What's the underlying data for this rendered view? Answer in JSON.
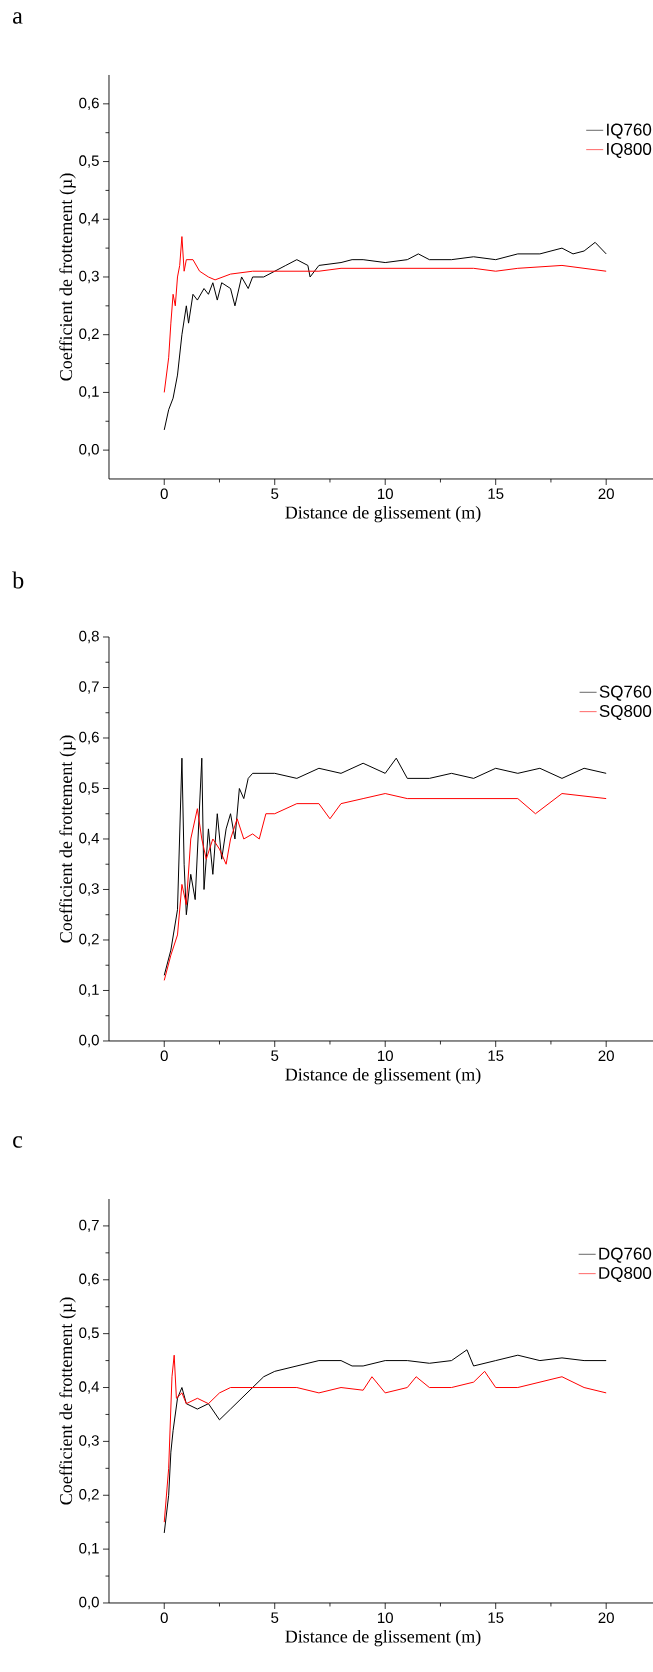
{
  "chart_data": [
    {
      "type": "line",
      "title": "a",
      "xlabel": "Distance de glissement (m)",
      "ylabel": "Coefficient de frottement (µ)",
      "xlim": [
        -2.5,
        22.3
      ],
      "xticks": [
        0,
        5,
        10,
        15,
        20
      ],
      "ylim": [
        -0.05,
        0.65
      ],
      "yticks": [
        {
          "value": 0,
          "label": "0,0"
        },
        {
          "value": 0.1,
          "label": "0,1"
        },
        {
          "value": 0.2,
          "label": "0,2"
        },
        {
          "value": 0.3,
          "label": "0,3"
        },
        {
          "value": 0.4,
          "label": "0,4"
        },
        {
          "value": 0.5,
          "label": "0,5"
        },
        {
          "value": 0.6,
          "label": "0,6"
        }
      ],
      "grid": false,
      "legend": "top right",
      "marker": "none",
      "line_style": "solid",
      "series": [
        {
          "name": "IQ760",
          "color": "#000000",
          "x": [
            0,
            0.2,
            0.4,
            0.6,
            0.8,
            1.0,
            1.1,
            1.3,
            1.5,
            1.8,
            2.0,
            2.2,
            2.4,
            2.6,
            3.0,
            3.2,
            3.5,
            3.8,
            4.0,
            4.5,
            5,
            5.5,
            6,
            6.5,
            6.6,
            7,
            8,
            8.5,
            9,
            10,
            11,
            11.5,
            12,
            13,
            14,
            15,
            16,
            17,
            18,
            18.5,
            19,
            19.5,
            20
          ],
          "values": [
            0.035,
            0.07,
            0.09,
            0.13,
            0.2,
            0.25,
            0.22,
            0.27,
            0.26,
            0.28,
            0.27,
            0.29,
            0.26,
            0.29,
            0.28,
            0.25,
            0.3,
            0.28,
            0.3,
            0.3,
            0.31,
            0.32,
            0.33,
            0.32,
            0.3,
            0.32,
            0.325,
            0.33,
            0.33,
            0.325,
            0.33,
            0.34,
            0.33,
            0.33,
            0.335,
            0.33,
            0.34,
            0.34,
            0.35,
            0.34,
            0.345,
            0.36,
            0.34
          ]
        },
        {
          "name": "IQ800",
          "color": "#ff0000",
          "x": [
            0,
            0.2,
            0.3,
            0.4,
            0.5,
            0.6,
            0.7,
            0.8,
            0.9,
            1.0,
            1.3,
            1.6,
            2.0,
            2.3,
            3,
            4,
            5,
            6,
            7,
            8,
            10,
            12,
            14,
            15,
            16,
            18,
            19,
            20
          ],
          "values": [
            0.1,
            0.16,
            0.22,
            0.27,
            0.25,
            0.3,
            0.32,
            0.37,
            0.31,
            0.33,
            0.33,
            0.31,
            0.3,
            0.295,
            0.305,
            0.31,
            0.31,
            0.31,
            0.31,
            0.315,
            0.315,
            0.315,
            0.315,
            0.31,
            0.315,
            0.32,
            0.315,
            0.31
          ]
        }
      ]
    },
    {
      "type": "line",
      "title": "b",
      "xlabel": "Distance de glissement (m)",
      "ylabel": "Coefficient de frottement (µ)",
      "xlim": [
        -2.5,
        22.3
      ],
      "xticks": [
        0,
        5,
        10,
        15,
        20
      ],
      "ylim": [
        0,
        0.8
      ],
      "yticks": [
        {
          "value": 0,
          "label": "0,0"
        },
        {
          "value": 0.1,
          "label": "0,1"
        },
        {
          "value": 0.2,
          "label": "0,2"
        },
        {
          "value": 0.3,
          "label": "0,3"
        },
        {
          "value": 0.4,
          "label": "0,4"
        },
        {
          "value": 0.5,
          "label": "0,5"
        },
        {
          "value": 0.6,
          "label": "0,6"
        },
        {
          "value": 0.7,
          "label": "0,7"
        },
        {
          "value": 0.8,
          "label": "0,8"
        }
      ],
      "grid": false,
      "legend": "top right",
      "marker": "none",
      "line_style": "solid",
      "series": [
        {
          "name": "SQ760",
          "color": "#000000",
          "x": [
            0,
            0.3,
            0.6,
            0.8,
            0.9,
            1.0,
            1.2,
            1.4,
            1.7,
            1.8,
            2.0,
            2.2,
            2.4,
            2.6,
            2.8,
            3.0,
            3.2,
            3.4,
            3.6,
            3.8,
            4.0,
            5,
            6,
            7,
            8,
            9,
            10,
            10.5,
            11,
            12,
            13,
            14,
            15,
            16,
            17,
            18,
            19,
            20
          ],
          "values": [
            0.13,
            0.18,
            0.26,
            0.56,
            0.35,
            0.25,
            0.33,
            0.28,
            0.56,
            0.3,
            0.42,
            0.33,
            0.45,
            0.36,
            0.42,
            0.45,
            0.4,
            0.5,
            0.48,
            0.52,
            0.53,
            0.53,
            0.52,
            0.54,
            0.53,
            0.55,
            0.53,
            0.56,
            0.52,
            0.52,
            0.53,
            0.52,
            0.54,
            0.53,
            0.54,
            0.52,
            0.54,
            0.53
          ]
        },
        {
          "name": "SQ800",
          "color": "#ff0000",
          "x": [
            0,
            0.3,
            0.6,
            0.8,
            1.0,
            1.2,
            1.5,
            1.7,
            1.9,
            2.2,
            2.5,
            2.8,
            3.0,
            3.3,
            3.6,
            4.0,
            4.3,
            4.6,
            5,
            6,
            7,
            7.5,
            8,
            9,
            10,
            11,
            12,
            14,
            16,
            16.8,
            18,
            20
          ],
          "values": [
            0.12,
            0.17,
            0.21,
            0.31,
            0.27,
            0.4,
            0.46,
            0.4,
            0.36,
            0.4,
            0.38,
            0.35,
            0.4,
            0.44,
            0.4,
            0.41,
            0.4,
            0.45,
            0.45,
            0.47,
            0.47,
            0.44,
            0.47,
            0.48,
            0.49,
            0.48,
            0.48,
            0.48,
            0.48,
            0.45,
            0.49,
            0.48
          ]
        }
      ]
    },
    {
      "type": "line",
      "title": "c",
      "xlabel": "Distance de glissement (m)",
      "ylabel": "Coefficient de frottement (µ)",
      "xlim": [
        -2.5,
        22.3
      ],
      "xticks": [
        0,
        5,
        10,
        15,
        20
      ],
      "ylim": [
        0,
        0.75
      ],
      "yticks": [
        {
          "value": 0,
          "label": "0,0"
        },
        {
          "value": 0.1,
          "label": "0,1"
        },
        {
          "value": 0.2,
          "label": "0,2"
        },
        {
          "value": 0.3,
          "label": "0,3"
        },
        {
          "value": 0.4,
          "label": "0,4"
        },
        {
          "value": 0.5,
          "label": "0,5"
        },
        {
          "value": 0.6,
          "label": "0,6"
        },
        {
          "value": 0.7,
          "label": "0,7"
        }
      ],
      "grid": false,
      "legend": "top right",
      "marker": "none",
      "line_style": "solid",
      "series": [
        {
          "name": "DQ760",
          "color": "#000000",
          "x": [
            0,
            0.2,
            0.3,
            0.4,
            0.6,
            0.8,
            1.0,
            1.5,
            2,
            2.5,
            3,
            3.5,
            4,
            4.5,
            5,
            6,
            7,
            8,
            8.5,
            9,
            10,
            11,
            12,
            13,
            13.7,
            14,
            15,
            16,
            17,
            18,
            19,
            20
          ],
          "values": [
            0.13,
            0.2,
            0.28,
            0.32,
            0.38,
            0.4,
            0.37,
            0.36,
            0.37,
            0.34,
            0.36,
            0.38,
            0.4,
            0.42,
            0.43,
            0.44,
            0.45,
            0.45,
            0.44,
            0.44,
            0.45,
            0.45,
            0.445,
            0.45,
            0.47,
            0.44,
            0.45,
            0.46,
            0.45,
            0.455,
            0.45,
            0.45
          ]
        },
        {
          "name": "DQ800",
          "color": "#ff0000",
          "x": [
            0,
            0.2,
            0.35,
            0.45,
            0.55,
            0.8,
            1.0,
            1.5,
            2,
            2.5,
            3,
            3.5,
            4,
            5,
            6,
            7,
            8,
            9,
            9.4,
            10,
            11,
            11.4,
            12,
            13,
            14,
            14.5,
            15,
            16,
            17,
            18,
            19,
            20
          ],
          "values": [
            0.15,
            0.25,
            0.42,
            0.46,
            0.38,
            0.39,
            0.37,
            0.38,
            0.37,
            0.39,
            0.4,
            0.4,
            0.4,
            0.4,
            0.4,
            0.39,
            0.4,
            0.395,
            0.42,
            0.39,
            0.4,
            0.42,
            0.4,
            0.4,
            0.41,
            0.43,
            0.4,
            0.4,
            0.41,
            0.42,
            0.4,
            0.39
          ]
        }
      ]
    }
  ]
}
